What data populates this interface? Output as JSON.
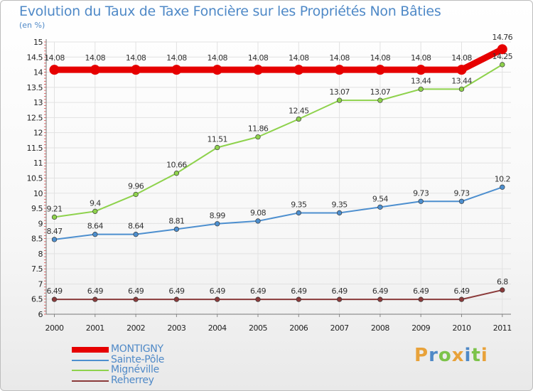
{
  "title": "Evolution du Taux de Taxe Foncière sur les Propriétés Non Bâties",
  "subtitle": "(en %)",
  "brand": {
    "text": "Proxiti",
    "letters": [
      {
        "ch": "P",
        "color": "#e8a23a"
      },
      {
        "ch": "r",
        "color": "#4f89c7"
      },
      {
        "ch": "o",
        "color": "#7cc34a"
      },
      {
        "ch": "x",
        "color": "#e8a23a"
      },
      {
        "ch": "i",
        "color": "#4f89c7"
      },
      {
        "ch": "t",
        "color": "#7cc34a"
      },
      {
        "ch": "i",
        "color": "#e8a23a"
      }
    ]
  },
  "chart_data": {
    "type": "line",
    "title": "Evolution du Taux de Taxe Foncière sur les Propriétés Non Bâties",
    "ylabel": "(en %)",
    "xlabel": "",
    "categories": [
      "2000",
      "2001",
      "2002",
      "2003",
      "2004",
      "2005",
      "2006",
      "2007",
      "2008",
      "2009",
      "2010",
      "2011"
    ],
    "ylim": [
      6,
      15
    ],
    "yticks": [
      "6",
      "6.5",
      "7",
      "7.5",
      "8",
      "8.5",
      "9",
      "9.5",
      "10",
      "10.5",
      "11",
      "11.5",
      "12",
      "12.5",
      "13",
      "13.5",
      "14",
      "14.5",
      "15"
    ],
    "grid": true,
    "legend_position": "bottom-left",
    "series": [
      {
        "name": "MONTIGNY",
        "color": "#e60000",
        "bold": true,
        "values": [
          14.08,
          14.08,
          14.08,
          14.08,
          14.08,
          14.08,
          14.08,
          14.08,
          14.08,
          14.08,
          14.08,
          14.76
        ],
        "labels": [
          "14.08",
          "14.08",
          "14.08",
          "14.08",
          "14.08",
          "14.08",
          "14.08",
          "14.08",
          "14.08",
          "14.08",
          "14.08",
          "14.76"
        ]
      },
      {
        "name": "Sainte-Pôle",
        "color": "#4d8fcf",
        "bold": false,
        "values": [
          8.47,
          8.64,
          8.64,
          8.81,
          8.99,
          9.08,
          9.35,
          9.35,
          9.54,
          9.73,
          9.73,
          10.2
        ],
        "labels": [
          "8.47",
          "8.64",
          "8.64",
          "8.81",
          "8.99",
          "9.08",
          "9.35",
          "9.35",
          "9.54",
          "9.73",
          "9.73",
          "10.2"
        ]
      },
      {
        "name": "Mignéville",
        "color": "#8ed24c",
        "bold": false,
        "values": [
          9.21,
          9.4,
          9.96,
          10.66,
          11.51,
          11.86,
          12.45,
          13.07,
          13.07,
          13.44,
          13.44,
          14.25
        ],
        "labels": [
          "9.21",
          "9.4",
          "9.96",
          "10.66",
          "11.51",
          "11.86",
          "12.45",
          "13.07",
          "13.07",
          "13.44",
          "13.44",
          "14.25"
        ]
      },
      {
        "name": "Reherrey",
        "color": "#8b3a3a",
        "bold": false,
        "values": [
          6.49,
          6.49,
          6.49,
          6.49,
          6.49,
          6.49,
          6.49,
          6.49,
          6.49,
          6.49,
          6.49,
          6.8
        ],
        "labels": [
          "6.49",
          "6.49",
          "6.49",
          "6.49",
          "6.49",
          "6.49",
          "6.49",
          "6.49",
          "6.49",
          "6.49",
          "6.49",
          "6.8"
        ]
      }
    ]
  }
}
